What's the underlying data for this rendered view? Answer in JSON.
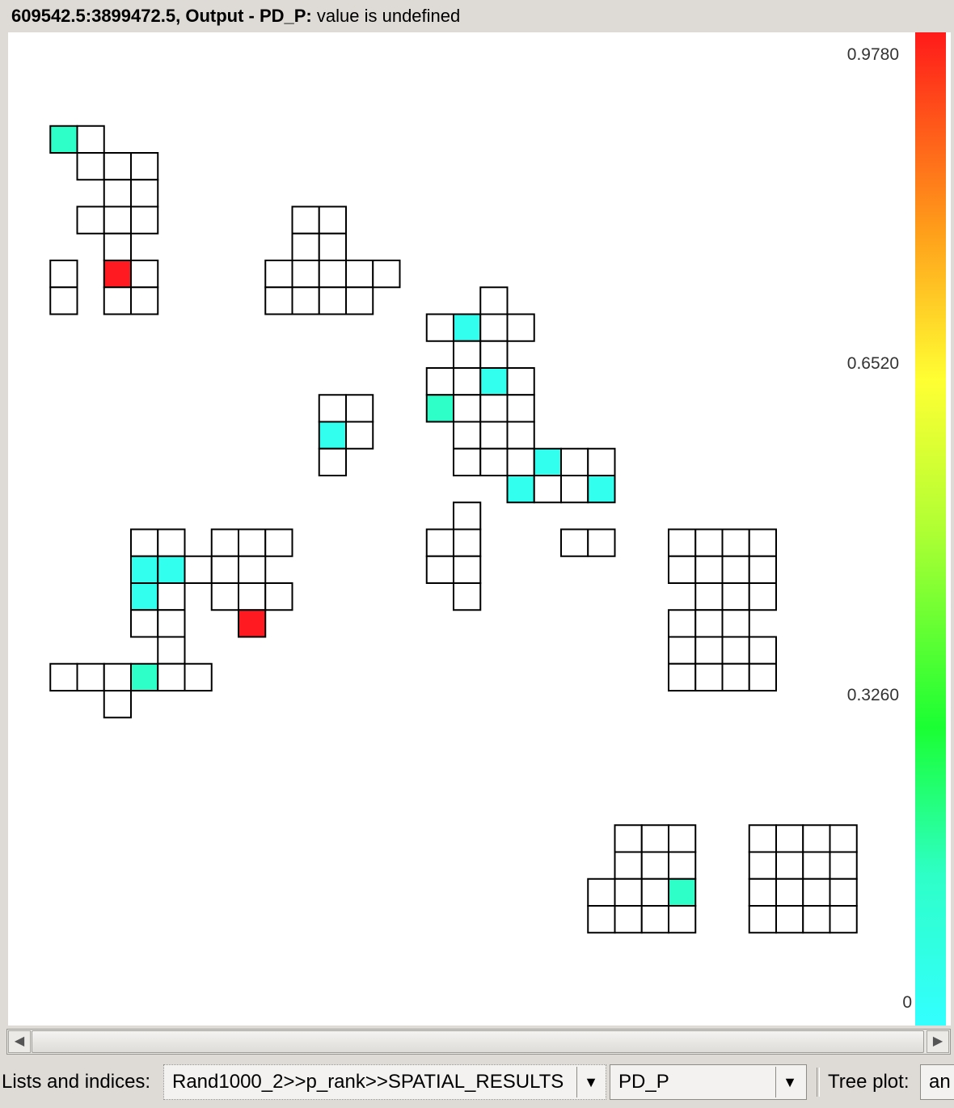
{
  "status": {
    "coords": "609542.5:3899472.5,",
    "output_label": "Output - PD_P:",
    "message": "value is undefined"
  },
  "legend": {
    "max_label": "0.9780",
    "upper_mid_label": "0.6520",
    "lower_mid_label": "0.3260",
    "min_label": "0",
    "colors": [
      "#ff1a1a",
      "#ff9e1a",
      "#ffff33",
      "#b0ff33",
      "#1aff33",
      "#2effc8",
      "#33ffff"
    ]
  },
  "map": {
    "cell_colors": {
      "empty": "#ffffff",
      "cyan": "#33ffee",
      "teal": "#2effc8",
      "red": "#ff1a22"
    },
    "cells": [
      "1,3,t",
      "2,3,w",
      "2,4,w",
      "3,4,w",
      "4,4,w",
      "3,5,w",
      "4,5,w",
      "2,6,w",
      "3,6,w",
      "4,6,w",
      "3,7,w",
      "1,8,w",
      "3,8,r",
      "4,8,w",
      "1,9,w",
      "3,9,w",
      "4,9,w",
      "10,6,w",
      "11,6,w",
      "10,7,w",
      "11,7,w",
      "9,8,w",
      "10,8,w",
      "11,8,w",
      "12,8,w",
      "13,8,w",
      "9,9,w",
      "10,9,w",
      "11,9,w",
      "12,9,w",
      "17,9,w",
      "15,10,w",
      "16,10,c",
      "17,10,w",
      "18,10,w",
      "16,11,w",
      "17,11,w",
      "15,12,w",
      "16,12,w",
      "17,12,c",
      "18,12,w",
      "15,13,t",
      "16,13,w",
      "17,13,w",
      "18,13,w",
      "16,14,w",
      "17,14,w",
      "18,14,w",
      "16,15,w",
      "17,15,w",
      "18,15,w",
      "19,15,c",
      "20,15,w",
      "21,15,w",
      "18,16,c",
      "19,16,w",
      "20,16,w",
      "21,16,c",
      "11,13,w",
      "12,13,w",
      "11,14,c",
      "12,14,w",
      "11,15,w",
      "16,17,w",
      "15,18,w",
      "16,18,w",
      "15,19,w",
      "16,19,w",
      "16,20,w",
      "20,18,w",
      "21,18,w",
      "4,18,w",
      "5,18,w",
      "7,18,w",
      "8,18,w",
      "9,18,w",
      "4,19,c",
      "5,19,c",
      "6,19,w",
      "7,19,w",
      "8,19,w",
      "4,20,c",
      "5,20,w",
      "7,20,w",
      "8,20,w",
      "9,20,w",
      "4,21,w",
      "5,21,w",
      "8,21,r",
      "5,22,w",
      "1,23,w",
      "2,23,w",
      "3,23,w",
      "4,23,t",
      "5,23,w",
      "6,23,w",
      "3,24,w",
      "24,18,w",
      "25,18,w",
      "26,18,w",
      "27,18,w",
      "24,19,w",
      "25,19,w",
      "26,19,w",
      "27,19,w",
      "25,20,w",
      "26,20,w",
      "27,20,w",
      "24,21,w",
      "25,21,w",
      "26,21,w",
      "24,22,w",
      "25,22,w",
      "26,22,w",
      "27,22,w",
      "24,23,w",
      "25,23,w",
      "26,23,w",
      "27,23,w",
      "22,29,w",
      "23,29,w",
      "24,29,w",
      "22,30,w",
      "23,30,w",
      "24,30,w",
      "21,31,w",
      "22,31,w",
      "23,31,w",
      "24,31,t",
      "21,32,w",
      "22,32,w",
      "23,32,w",
      "24,32,w",
      "27,29,w",
      "28,29,w",
      "29,29,w",
      "30,29,w",
      "27,30,w",
      "28,30,w",
      "29,30,w",
      "30,30,w",
      "27,31,w",
      "28,31,w",
      "29,31,w",
      "30,31,w",
      "27,32,w",
      "28,32,w",
      "29,32,w",
      "30,32,w"
    ]
  },
  "toolbar": {
    "lists_label": "Lists and indices:",
    "list_value": "Rand1000_2>>p_rank>>SPATIAL_RESULTS",
    "index_value": "PD_P",
    "tree_plot_label": "Tree plot:",
    "tree_plot_value": "an"
  },
  "scrollbar": {
    "left_arrow": "◀",
    "right_arrow": "▶"
  },
  "icons": {
    "dropdown": "▼"
  }
}
